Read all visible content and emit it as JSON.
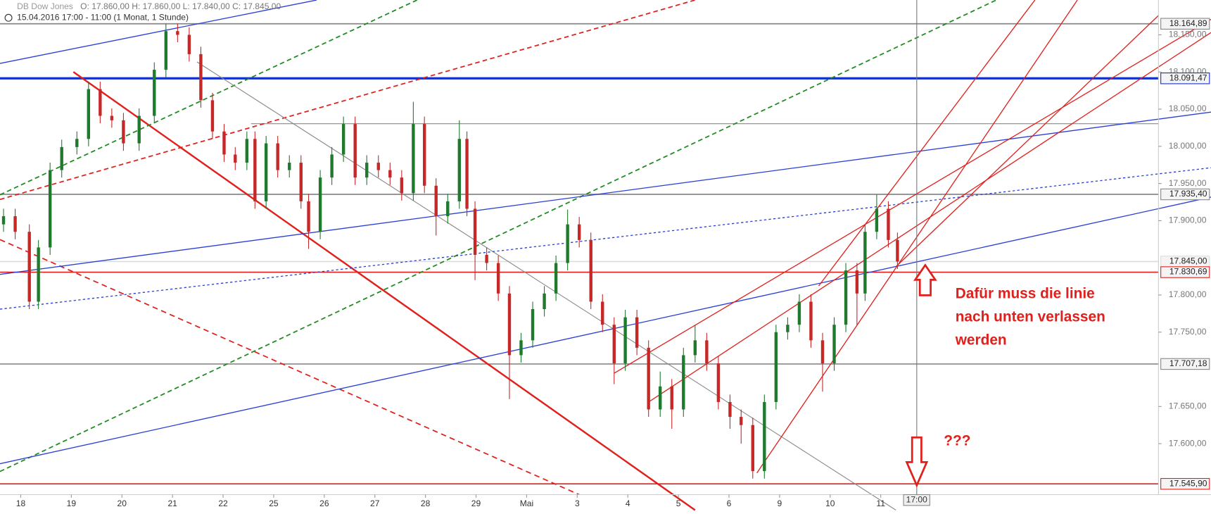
{
  "chart_data": {
    "type": "candlestick",
    "title": "DB Dow Jones",
    "subtitle": "O: 17.860,00  H: 17.860,00  L: 17.840,00  C: 17.845,00",
    "period": "15.04.2016 17:00 - 11:00 (1 Monat, 1 Stunde)",
    "up_color": "#1f7a2e",
    "down_color": "#c62828",
    "xlim": [
      -0.41,
      22.49
    ],
    "ylim": [
      17531.4,
      18196.8
    ],
    "xticks": [
      {
        "value": 0,
        "label": "18"
      },
      {
        "value": 1,
        "label": "19"
      },
      {
        "value": 2,
        "label": "20"
      },
      {
        "value": 3,
        "label": "21"
      },
      {
        "value": 4,
        "label": "22"
      },
      {
        "value": 5,
        "label": "25"
      },
      {
        "value": 6,
        "label": "26"
      },
      {
        "value": 7,
        "label": "27"
      },
      {
        "value": 8,
        "label": "28"
      },
      {
        "value": 9,
        "label": "29"
      },
      {
        "value": 10,
        "label": "Mai"
      },
      {
        "value": 11,
        "label": "3"
      },
      {
        "value": 12,
        "label": "4"
      },
      {
        "value": 13,
        "label": "5"
      },
      {
        "value": 14,
        "label": "6"
      },
      {
        "value": 15,
        "label": "9"
      },
      {
        "value": 16,
        "label": "10"
      },
      {
        "value": 17,
        "label": "11"
      }
    ],
    "yticks": [
      {
        "value": 18150,
        "label": "18.150,00"
      },
      {
        "value": 18100,
        "label": "18.100,00"
      },
      {
        "value": 18050,
        "label": "18.050,00"
      },
      {
        "value": 18000,
        "label": "18.000,00"
      },
      {
        "value": 17950,
        "label": "17.950,00"
      },
      {
        "value": 17900,
        "label": "17.900,00"
      },
      {
        "value": 17800,
        "label": "17.800,00"
      },
      {
        "value": 17750,
        "label": "17.750,00"
      },
      {
        "value": 17650,
        "label": "17.650,00"
      },
      {
        "value": 17600,
        "label": "17.600,00"
      }
    ],
    "price_lines": [
      {
        "value": 18164.89,
        "label": "18.164,89",
        "color": "#888888"
      },
      {
        "value": 18091.47,
        "label": "18.091,47",
        "color": "#1030d0"
      },
      {
        "value": 17935.4,
        "label": "17.935,40",
        "color": "#888888"
      },
      {
        "value": 17845.0,
        "label": "17.845,00",
        "color": "#dddddd"
      },
      {
        "value": 17830.69,
        "label": "17.830,69",
        "color": "#e0201c"
      },
      {
        "value": 17707.18,
        "label": "17.707,18",
        "color": "#888888"
      },
      {
        "value": 17545.9,
        "label": "17.545,90",
        "color": "#e0201c"
      }
    ],
    "cursor": {
      "x": 17.71,
      "label": "17:00"
    },
    "annotations": [
      "Dafür muss die linie",
      "nach unten verlassen",
      "werden",
      "???"
    ],
    "candles": [
      {
        "x": -0.34,
        "open": 17895,
        "high": 17916,
        "low": 17885,
        "close": 17906
      },
      {
        "x": -0.11,
        "open": 17906,
        "high": 17916,
        "low": 17875,
        "close": 17885
      },
      {
        "x": 0.17,
        "open": 17885,
        "high": 17895,
        "low": 17781,
        "close": 17791
      },
      {
        "x": 0.35,
        "open": 17791,
        "high": 17874,
        "low": 17781,
        "close": 17864
      },
      {
        "x": 0.58,
        "open": 17864,
        "high": 17978,
        "low": 17854,
        "close": 17968
      },
      {
        "x": 0.81,
        "open": 17968,
        "high": 18009,
        "low": 17958,
        "close": 17999
      },
      {
        "x": 1.11,
        "open": 17999,
        "high": 18020,
        "low": 17989,
        "close": 18010
      },
      {
        "x": 1.34,
        "open": 18010,
        "high": 18087,
        "low": 18000,
        "close": 18077
      },
      {
        "x": 1.57,
        "open": 18077,
        "high": 18087,
        "low": 18031,
        "close": 18041
      },
      {
        "x": 1.8,
        "open": 18041,
        "high": 18051,
        "low": 18025,
        "close": 18035
      },
      {
        "x": 2.03,
        "open": 18035,
        "high": 18045,
        "low": 17994,
        "close": 18004
      },
      {
        "x": 2.34,
        "open": 18004,
        "high": 18051,
        "low": 17994,
        "close": 18041
      },
      {
        "x": 2.64,
        "open": 18041,
        "high": 18113,
        "low": 18031,
        "close": 18103
      },
      {
        "x": 2.87,
        "open": 18103,
        "high": 18165,
        "low": 18093,
        "close": 18155
      },
      {
        "x": 3.1,
        "open": 18155,
        "high": 18165,
        "low": 18140,
        "close": 18150
      },
      {
        "x": 3.33,
        "open": 18150,
        "high": 18160,
        "low": 18114,
        "close": 18124
      },
      {
        "x": 3.56,
        "open": 18124,
        "high": 18134,
        "low": 18052,
        "close": 18062
      },
      {
        "x": 3.79,
        "open": 18062,
        "high": 18072,
        "low": 18010,
        "close": 18020
      },
      {
        "x": 4.02,
        "open": 18020,
        "high": 18030,
        "low": 17979,
        "close": 17989
      },
      {
        "x": 4.24,
        "open": 17989,
        "high": 17999,
        "low": 17968,
        "close": 17978
      },
      {
        "x": 4.47,
        "open": 17978,
        "high": 18020,
        "low": 17968,
        "close": 18010
      },
      {
        "x": 4.63,
        "open": 18010,
        "high": 18020,
        "low": 17916,
        "close": 17926
      },
      {
        "x": 4.85,
        "open": 17926,
        "high": 18014,
        "low": 17916,
        "close": 18004
      },
      {
        "x": 5.08,
        "open": 18004,
        "high": 18014,
        "low": 17958,
        "close": 17968
      },
      {
        "x": 5.31,
        "open": 17968,
        "high": 17988,
        "low": 17958,
        "close": 17978
      },
      {
        "x": 5.54,
        "open": 17978,
        "high": 17988,
        "low": 17916,
        "close": 17926
      },
      {
        "x": 5.69,
        "open": 17926,
        "high": 17936,
        "low": 17862,
        "close": 17885
      },
      {
        "x": 5.92,
        "open": 17885,
        "high": 17968,
        "low": 17875,
        "close": 17958
      },
      {
        "x": 6.15,
        "open": 17958,
        "high": 17999,
        "low": 17948,
        "close": 17989
      },
      {
        "x": 6.38,
        "open": 17989,
        "high": 18040,
        "low": 17979,
        "close": 18030
      },
      {
        "x": 6.61,
        "open": 18030,
        "high": 18040,
        "low": 17948,
        "close": 17958
      },
      {
        "x": 6.84,
        "open": 17958,
        "high": 17988,
        "low": 17948,
        "close": 17978
      },
      {
        "x": 7.07,
        "open": 17978,
        "high": 17988,
        "low": 17958,
        "close": 17968
      },
      {
        "x": 7.3,
        "open": 17968,
        "high": 17978,
        "low": 17948,
        "close": 17958
      },
      {
        "x": 7.53,
        "open": 17958,
        "high": 17968,
        "low": 17927,
        "close": 17937
      },
      {
        "x": 7.76,
        "open": 17937,
        "high": 18060,
        "low": 17927,
        "close": 18030
      },
      {
        "x": 7.98,
        "open": 18030,
        "high": 18040,
        "low": 17937,
        "close": 17947
      },
      {
        "x": 8.21,
        "open": 17947,
        "high": 17957,
        "low": 17880,
        "close": 17906
      },
      {
        "x": 8.44,
        "open": 17906,
        "high": 17936,
        "low": 17896,
        "close": 17926
      },
      {
        "x": 8.67,
        "open": 17926,
        "high": 18035,
        "low": 17916,
        "close": 18010
      },
      {
        "x": 8.82,
        "open": 18010,
        "high": 18020,
        "low": 17906,
        "close": 17916
      },
      {
        "x": 8.98,
        "open": 17916,
        "high": 17926,
        "low": 17820,
        "close": 17854
      },
      {
        "x": 9.21,
        "open": 17854,
        "high": 17864,
        "low": 17833,
        "close": 17843
      },
      {
        "x": 9.44,
        "open": 17843,
        "high": 17853,
        "low": 17792,
        "close": 17802
      },
      {
        "x": 9.66,
        "open": 17802,
        "high": 17812,
        "low": 17660,
        "close": 17719
      },
      {
        "x": 9.89,
        "open": 17719,
        "high": 17749,
        "low": 17709,
        "close": 17739
      },
      {
        "x": 10.12,
        "open": 17739,
        "high": 17791,
        "low": 17729,
        "close": 17781
      },
      {
        "x": 10.35,
        "open": 17781,
        "high": 17812,
        "low": 17771,
        "close": 17802
      },
      {
        "x": 10.58,
        "open": 17802,
        "high": 17853,
        "low": 17792,
        "close": 17843
      },
      {
        "x": 10.81,
        "open": 17843,
        "high": 17915,
        "low": 17833,
        "close": 17895
      },
      {
        "x": 11.04,
        "open": 17895,
        "high": 17905,
        "low": 17864,
        "close": 17874
      },
      {
        "x": 11.27,
        "open": 17874,
        "high": 17884,
        "low": 17781,
        "close": 17791
      },
      {
        "x": 11.5,
        "open": 17791,
        "high": 17801,
        "low": 17750,
        "close": 17760
      },
      {
        "x": 11.73,
        "open": 17760,
        "high": 17770,
        "low": 17680,
        "close": 17708
      },
      {
        "x": 11.95,
        "open": 17708,
        "high": 17780,
        "low": 17698,
        "close": 17770
      },
      {
        "x": 12.18,
        "open": 17770,
        "high": 17780,
        "low": 17719,
        "close": 17729
      },
      {
        "x": 12.41,
        "open": 17729,
        "high": 17739,
        "low": 17636,
        "close": 17646
      },
      {
        "x": 12.64,
        "open": 17646,
        "high": 17697,
        "low": 17636,
        "close": 17677
      },
      {
        "x": 12.87,
        "open": 17677,
        "high": 17687,
        "low": 17620,
        "close": 17646
      },
      {
        "x": 13.1,
        "open": 17646,
        "high": 17729,
        "low": 17636,
        "close": 17719
      },
      {
        "x": 13.33,
        "open": 17719,
        "high": 17759,
        "low": 17709,
        "close": 17739
      },
      {
        "x": 13.56,
        "open": 17739,
        "high": 17749,
        "low": 17698,
        "close": 17708
      },
      {
        "x": 13.79,
        "open": 17708,
        "high": 17718,
        "low": 17646,
        "close": 17656
      },
      {
        "x": 14.02,
        "open": 17656,
        "high": 17666,
        "low": 17620,
        "close": 17636
      },
      {
        "x": 14.24,
        "open": 17636,
        "high": 17646,
        "low": 17600,
        "close": 17625
      },
      {
        "x": 14.47,
        "open": 17625,
        "high": 17635,
        "low": 17553,
        "close": 17563
      },
      {
        "x": 14.7,
        "open": 17563,
        "high": 17666,
        "low": 17553,
        "close": 17656
      },
      {
        "x": 14.93,
        "open": 17656,
        "high": 17760,
        "low": 17646,
        "close": 17750
      },
      {
        "x": 15.16,
        "open": 17750,
        "high": 17770,
        "low": 17740,
        "close": 17760
      },
      {
        "x": 15.39,
        "open": 17760,
        "high": 17801,
        "low": 17750,
        "close": 17791
      },
      {
        "x": 15.62,
        "open": 17791,
        "high": 17801,
        "low": 17729,
        "close": 17739
      },
      {
        "x": 15.85,
        "open": 17739,
        "high": 17749,
        "low": 17670,
        "close": 17708
      },
      {
        "x": 16.08,
        "open": 17708,
        "high": 17770,
        "low": 17698,
        "close": 17760
      },
      {
        "x": 16.31,
        "open": 17760,
        "high": 17843,
        "low": 17750,
        "close": 17833
      },
      {
        "x": 16.53,
        "open": 17833,
        "high": 17843,
        "low": 17760,
        "close": 17802
      },
      {
        "x": 16.69,
        "open": 17802,
        "high": 17895,
        "low": 17792,
        "close": 17885
      },
      {
        "x": 16.92,
        "open": 17885,
        "high": 17935,
        "low": 17875,
        "close": 17916
      },
      {
        "x": 17.15,
        "open": 17916,
        "high": 17926,
        "low": 17864,
        "close": 17874
      },
      {
        "x": 17.33,
        "open": 17874,
        "high": 17884,
        "low": 17835,
        "close": 17845
      }
    ]
  }
}
